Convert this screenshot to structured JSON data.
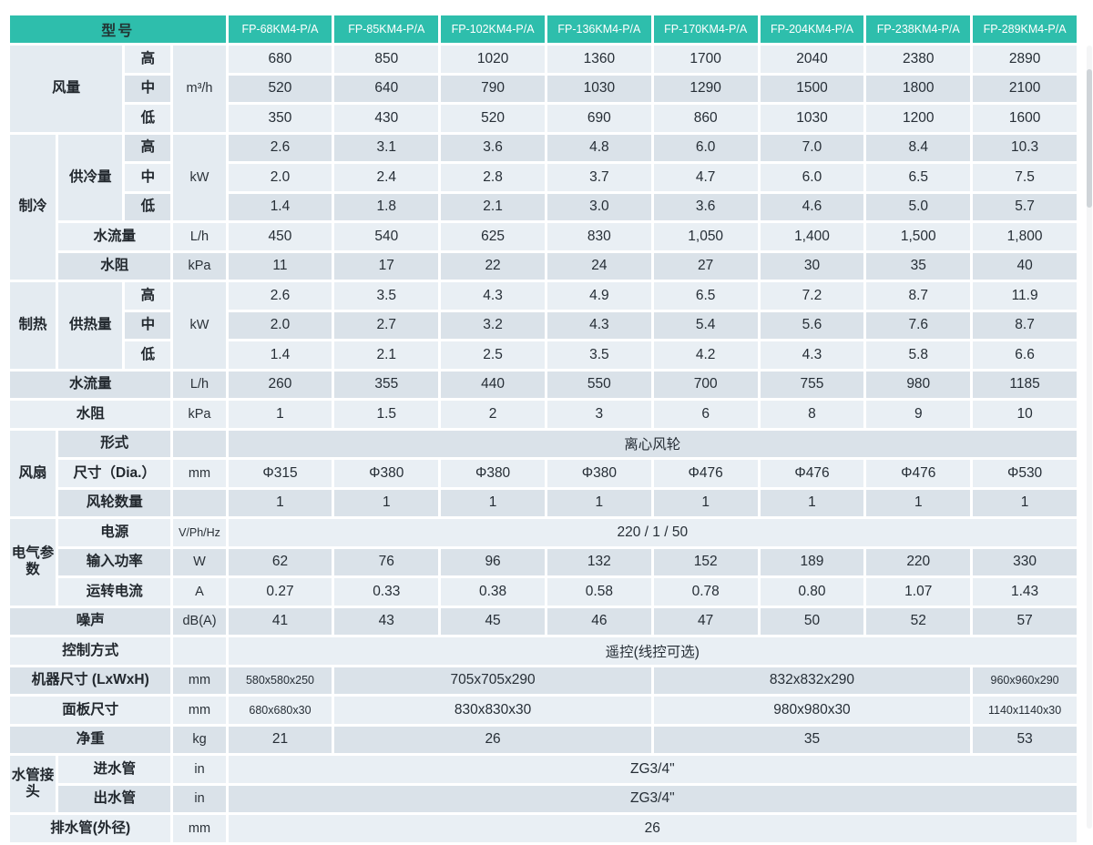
{
  "colors": {
    "header_teal": "#2ebeac",
    "row_light": "#e9eff4",
    "row_dark": "#dae2e9",
    "merged_cell": "#e4ebf1",
    "header_model_text": "#ffffff"
  },
  "table": {
    "model_header": "型号",
    "models": [
      "FP-68KM4-P/A",
      "FP-85KM4-P/A",
      "FP-102KM4-P/A",
      "FP-136KM4-P/A",
      "FP-170KM4-P/A",
      "FP-204KM4-P/A",
      "FP-238KM4-P/A",
      "FP-289KM4-P/A"
    ],
    "rows": [
      {
        "cells": [
          {
            "t": "风量",
            "k": "group",
            "cs": 2,
            "rs": 3
          },
          {
            "t": "高",
            "k": "label"
          },
          {
            "t": "m³/h",
            "k": "unit",
            "rs": 3
          },
          {
            "t": "680",
            "k": "d"
          },
          {
            "t": "850",
            "k": "d"
          },
          {
            "t": "1020",
            "k": "d"
          },
          {
            "t": "1360",
            "k": "d"
          },
          {
            "t": "1700",
            "k": "d"
          },
          {
            "t": "2040",
            "k": "d"
          },
          {
            "t": "2380",
            "k": "d"
          },
          {
            "t": "2890",
            "k": "d"
          }
        ]
      },
      {
        "cells": [
          {
            "t": "中",
            "k": "label"
          },
          {
            "t": "520",
            "k": "d"
          },
          {
            "t": "640",
            "k": "d"
          },
          {
            "t": "790",
            "k": "d"
          },
          {
            "t": "1030",
            "k": "d"
          },
          {
            "t": "1290",
            "k": "d"
          },
          {
            "t": "1500",
            "k": "d"
          },
          {
            "t": "1800",
            "k": "d"
          },
          {
            "t": "2100",
            "k": "d"
          }
        ]
      },
      {
        "cells": [
          {
            "t": "低",
            "k": "label"
          },
          {
            "t": "350",
            "k": "d"
          },
          {
            "t": "430",
            "k": "d"
          },
          {
            "t": "520",
            "k": "d"
          },
          {
            "t": "690",
            "k": "d"
          },
          {
            "t": "860",
            "k": "d"
          },
          {
            "t": "1030",
            "k": "d"
          },
          {
            "t": "1200",
            "k": "d"
          },
          {
            "t": "1600",
            "k": "d"
          }
        ]
      },
      {
        "cells": [
          {
            "t": "制冷",
            "k": "group",
            "rs": 5
          },
          {
            "t": "供冷量",
            "k": "group",
            "rs": 3
          },
          {
            "t": "高",
            "k": "label"
          },
          {
            "t": "kW",
            "k": "unit",
            "rs": 3
          },
          {
            "t": "2.6",
            "k": "d"
          },
          {
            "t": "3.1",
            "k": "d"
          },
          {
            "t": "3.6",
            "k": "d"
          },
          {
            "t": "4.8",
            "k": "d"
          },
          {
            "t": "6.0",
            "k": "d"
          },
          {
            "t": "7.0",
            "k": "d"
          },
          {
            "t": "8.4",
            "k": "d"
          },
          {
            "t": "10.3",
            "k": "d"
          }
        ]
      },
      {
        "cells": [
          {
            "t": "中",
            "k": "label"
          },
          {
            "t": "2.0",
            "k": "d"
          },
          {
            "t": "2.4",
            "k": "d"
          },
          {
            "t": "2.8",
            "k": "d"
          },
          {
            "t": "3.7",
            "k": "d"
          },
          {
            "t": "4.7",
            "k": "d"
          },
          {
            "t": "6.0",
            "k": "d"
          },
          {
            "t": "6.5",
            "k": "d"
          },
          {
            "t": "7.5",
            "k": "d"
          }
        ]
      },
      {
        "cells": [
          {
            "t": "低",
            "k": "label"
          },
          {
            "t": "1.4",
            "k": "d"
          },
          {
            "t": "1.8",
            "k": "d"
          },
          {
            "t": "2.1",
            "k": "d"
          },
          {
            "t": "3.0",
            "k": "d"
          },
          {
            "t": "3.6",
            "k": "d"
          },
          {
            "t": "4.6",
            "k": "d"
          },
          {
            "t": "5.0",
            "k": "d"
          },
          {
            "t": "5.7",
            "k": "d"
          }
        ]
      },
      {
        "cells": [
          {
            "t": "水流量",
            "k": "label",
            "cs": 2
          },
          {
            "t": "L/h",
            "k": "unit"
          },
          {
            "t": "450",
            "k": "d"
          },
          {
            "t": "540",
            "k": "d"
          },
          {
            "t": "625",
            "k": "d"
          },
          {
            "t": "830",
            "k": "d"
          },
          {
            "t": "1,050",
            "k": "d"
          },
          {
            "t": "1,400",
            "k": "d"
          },
          {
            "t": "1,500",
            "k": "d"
          },
          {
            "t": "1,800",
            "k": "d"
          }
        ]
      },
      {
        "cells": [
          {
            "t": "水阻",
            "k": "label",
            "cs": 2
          },
          {
            "t": "kPa",
            "k": "unit"
          },
          {
            "t": "11",
            "k": "d"
          },
          {
            "t": "17",
            "k": "d"
          },
          {
            "t": "22",
            "k": "d"
          },
          {
            "t": "24",
            "k": "d"
          },
          {
            "t": "27",
            "k": "d"
          },
          {
            "t": "30",
            "k": "d"
          },
          {
            "t": "35",
            "k": "d"
          },
          {
            "t": "40",
            "k": "d"
          }
        ]
      },
      {
        "cells": [
          {
            "t": "制热",
            "k": "group",
            "rs": 3
          },
          {
            "t": "供热量",
            "k": "group",
            "rs": 3
          },
          {
            "t": "高",
            "k": "label"
          },
          {
            "t": "kW",
            "k": "unit",
            "rs": 3
          },
          {
            "t": "2.6",
            "k": "d"
          },
          {
            "t": "3.5",
            "k": "d"
          },
          {
            "t": "4.3",
            "k": "d"
          },
          {
            "t": "4.9",
            "k": "d"
          },
          {
            "t": "6.5",
            "k": "d"
          },
          {
            "t": "7.2",
            "k": "d"
          },
          {
            "t": "8.7",
            "k": "d"
          },
          {
            "t": "11.9",
            "k": "d"
          }
        ]
      },
      {
        "cells": [
          {
            "t": "中",
            "k": "label"
          },
          {
            "t": "2.0",
            "k": "d"
          },
          {
            "t": "2.7",
            "k": "d"
          },
          {
            "t": "3.2",
            "k": "d"
          },
          {
            "t": "4.3",
            "k": "d"
          },
          {
            "t": "5.4",
            "k": "d"
          },
          {
            "t": "5.6",
            "k": "d"
          },
          {
            "t": "7.6",
            "k": "d"
          },
          {
            "t": "8.7",
            "k": "d"
          }
        ]
      },
      {
        "cells": [
          {
            "t": "低",
            "k": "label"
          },
          {
            "t": "1.4",
            "k": "d"
          },
          {
            "t": "2.1",
            "k": "d"
          },
          {
            "t": "2.5",
            "k": "d"
          },
          {
            "t": "3.5",
            "k": "d"
          },
          {
            "t": "4.2",
            "k": "d"
          },
          {
            "t": "4.3",
            "k": "d"
          },
          {
            "t": "5.8",
            "k": "d"
          },
          {
            "t": "6.6",
            "k": "d"
          }
        ]
      },
      {
        "cells": [
          {
            "t": "水流量",
            "k": "label",
            "cs": 3
          },
          {
            "t": "L/h",
            "k": "unit"
          },
          {
            "t": "260",
            "k": "d"
          },
          {
            "t": "355",
            "k": "d"
          },
          {
            "t": "440",
            "k": "d"
          },
          {
            "t": "550",
            "k": "d"
          },
          {
            "t": "700",
            "k": "d"
          },
          {
            "t": "755",
            "k": "d"
          },
          {
            "t": "980",
            "k": "d"
          },
          {
            "t": "1185",
            "k": "d"
          }
        ]
      },
      {
        "cells": [
          {
            "t": "水阻",
            "k": "label",
            "cs": 3
          },
          {
            "t": "kPa",
            "k": "unit"
          },
          {
            "t": "1",
            "k": "d"
          },
          {
            "t": "1.5",
            "k": "d"
          },
          {
            "t": "2",
            "k": "d"
          },
          {
            "t": "3",
            "k": "d"
          },
          {
            "t": "6",
            "k": "d"
          },
          {
            "t": "8",
            "k": "d"
          },
          {
            "t": "9",
            "k": "d"
          },
          {
            "t": "10",
            "k": "d"
          }
        ]
      },
      {
        "cells": [
          {
            "t": "风扇",
            "k": "group",
            "rs": 3
          },
          {
            "t": "形式",
            "k": "label",
            "cs": 2
          },
          {
            "t": "",
            "k": "unit"
          },
          {
            "t": "离心风轮",
            "k": "d",
            "cs": 8
          }
        ]
      },
      {
        "cells": [
          {
            "t": "尺寸（Dia.）",
            "k": "label",
            "cs": 2
          },
          {
            "t": "mm",
            "k": "unit"
          },
          {
            "t": "Φ315",
            "k": "d"
          },
          {
            "t": "Φ380",
            "k": "d"
          },
          {
            "t": "Φ380",
            "k": "d"
          },
          {
            "t": "Φ380",
            "k": "d"
          },
          {
            "t": "Φ476",
            "k": "d"
          },
          {
            "t": "Φ476",
            "k": "d"
          },
          {
            "t": "Φ476",
            "k": "d"
          },
          {
            "t": "Φ530",
            "k": "d"
          }
        ]
      },
      {
        "cells": [
          {
            "t": "风轮数量",
            "k": "label",
            "cs": 2
          },
          {
            "t": "",
            "k": "unit"
          },
          {
            "t": "1",
            "k": "d"
          },
          {
            "t": "1",
            "k": "d"
          },
          {
            "t": "1",
            "k": "d"
          },
          {
            "t": "1",
            "k": "d"
          },
          {
            "t": "1",
            "k": "d"
          },
          {
            "t": "1",
            "k": "d"
          },
          {
            "t": "1",
            "k": "d"
          },
          {
            "t": "1",
            "k": "d"
          }
        ]
      },
      {
        "cells": [
          {
            "t": "电气参数",
            "k": "group",
            "rs": 3
          },
          {
            "t": "电源",
            "k": "label",
            "cs": 2
          },
          {
            "t": "V/Ph/Hz",
            "k": "unit",
            "small": true
          },
          {
            "t": "220 / 1 / 50",
            "k": "d",
            "cs": 8
          }
        ]
      },
      {
        "cells": [
          {
            "t": "输入功率",
            "k": "label",
            "cs": 2
          },
          {
            "t": "W",
            "k": "unit"
          },
          {
            "t": "62",
            "k": "d"
          },
          {
            "t": "76",
            "k": "d"
          },
          {
            "t": "96",
            "k": "d"
          },
          {
            "t": "132",
            "k": "d"
          },
          {
            "t": "152",
            "k": "d"
          },
          {
            "t": "189",
            "k": "d"
          },
          {
            "t": "220",
            "k": "d"
          },
          {
            "t": "330",
            "k": "d"
          }
        ]
      },
      {
        "cells": [
          {
            "t": "运转电流",
            "k": "label",
            "cs": 2
          },
          {
            "t": "A",
            "k": "unit"
          },
          {
            "t": "0.27",
            "k": "d"
          },
          {
            "t": "0.33",
            "k": "d"
          },
          {
            "t": "0.38",
            "k": "d"
          },
          {
            "t": "0.58",
            "k": "d"
          },
          {
            "t": "0.78",
            "k": "d"
          },
          {
            "t": "0.80",
            "k": "d"
          },
          {
            "t": "1.07",
            "k": "d"
          },
          {
            "t": "1.43",
            "k": "d"
          }
        ]
      },
      {
        "cells": [
          {
            "t": "噪声",
            "k": "label",
            "cs": 3
          },
          {
            "t": "dB(A)",
            "k": "unit"
          },
          {
            "t": "41",
            "k": "d"
          },
          {
            "t": "43",
            "k": "d"
          },
          {
            "t": "45",
            "k": "d"
          },
          {
            "t": "46",
            "k": "d"
          },
          {
            "t": "47",
            "k": "d"
          },
          {
            "t": "50",
            "k": "d"
          },
          {
            "t": "52",
            "k": "d"
          },
          {
            "t": "57",
            "k": "d"
          }
        ]
      },
      {
        "cells": [
          {
            "t": "控制方式",
            "k": "label",
            "cs": 3
          },
          {
            "t": "",
            "k": "unit"
          },
          {
            "t": "遥控(线控可选)",
            "k": "d",
            "cs": 8
          }
        ]
      },
      {
        "cells": [
          {
            "t": "机器尺寸 (LxWxH)",
            "k": "label",
            "cs": 3
          },
          {
            "t": "mm",
            "k": "unit"
          },
          {
            "t": "580x580x250",
            "k": "d",
            "small": true
          },
          {
            "t": "705x705x290",
            "k": "d",
            "cs": 3
          },
          {
            "t": "832x832x290",
            "k": "d",
            "cs": 3
          },
          {
            "t": "960x960x290",
            "k": "d",
            "small": true
          }
        ]
      },
      {
        "cells": [
          {
            "t": "面板尺寸",
            "k": "label",
            "cs": 3
          },
          {
            "t": "mm",
            "k": "unit"
          },
          {
            "t": "680x680x30",
            "k": "d",
            "small": true
          },
          {
            "t": "830x830x30",
            "k": "d",
            "cs": 3
          },
          {
            "t": "980x980x30",
            "k": "d",
            "cs": 3
          },
          {
            "t": "1140x1140x30",
            "k": "d",
            "small": true
          }
        ]
      },
      {
        "cells": [
          {
            "t": "净重",
            "k": "label",
            "cs": 3
          },
          {
            "t": "kg",
            "k": "unit"
          },
          {
            "t": "21",
            "k": "d"
          },
          {
            "t": "26",
            "k": "d",
            "cs": 3
          },
          {
            "t": "35",
            "k": "d",
            "cs": 3
          },
          {
            "t": "53",
            "k": "d"
          }
        ]
      },
      {
        "cells": [
          {
            "t": "水管接头",
            "k": "group",
            "rs": 2
          },
          {
            "t": "进水管",
            "k": "label",
            "cs": 2
          },
          {
            "t": "in",
            "k": "unit"
          },
          {
            "t": "ZG3/4\"",
            "k": "d",
            "cs": 8
          }
        ]
      },
      {
        "cells": [
          {
            "t": "出水管",
            "k": "label",
            "cs": 2
          },
          {
            "t": "in",
            "k": "unit"
          },
          {
            "t": "ZG3/4\"",
            "k": "d",
            "cs": 8
          }
        ]
      },
      {
        "cells": [
          {
            "t": "排水管(外径)",
            "k": "label",
            "cs": 3
          },
          {
            "t": "mm",
            "k": "unit"
          },
          {
            "t": "26",
            "k": "d",
            "cs": 8
          }
        ]
      }
    ]
  }
}
